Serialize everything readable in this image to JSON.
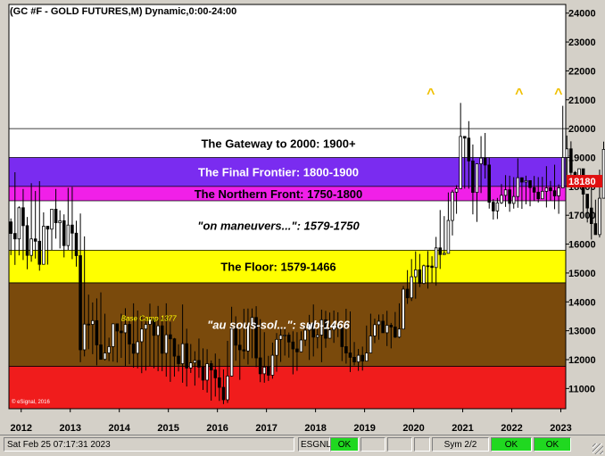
{
  "title": "(GC #F - GOLD FUTURES,M) Dynamic,0:00-24:00",
  "price_marker": "18180",
  "copyright": "© eSignal, 2016",
  "status": {
    "datetime": "Sat Feb 25 07:17:31 2023",
    "esignal_label": "ESGNL:",
    "esignal_status": "OK",
    "sym_label": "Sym 2/2",
    "ok1": "OK",
    "ok2": "OK"
  },
  "colors": {
    "gateway": "#ffffff",
    "final_frontier": "#7a2cf0",
    "northern_front": "#f020e8",
    "maneuvers": "#ffffff",
    "floor": "#ffff00",
    "sous_sol": "#7a4a0c",
    "red_zone": "#f01c1c",
    "candle_up": "#ffffff",
    "candle_down": "#000000",
    "peak_marker": "#f0c000"
  },
  "chart_data": {
    "type": "candlestick",
    "title": "(GC #F - GOLD FUTURES,M) Dynamic,0:00-24:00",
    "ylim": [
      10300,
      24300
    ],
    "yticks": [
      "24000",
      "23000",
      "22000",
      "21000",
      "20000",
      "19000",
      "18000",
      "17000",
      "16000",
      "15000",
      "14000",
      "13000",
      "12000",
      "11000"
    ],
    "xticks": [
      "2012",
      "2013",
      "2014",
      "2015",
      "2016",
      "2017",
      "2018",
      "2019",
      "2020",
      "2021",
      "2022",
      "2023"
    ],
    "xlim": [
      2011.75,
      2023.1
    ],
    "current_price": 18180,
    "zones": [
      {
        "label": "The Gateway to 2000:  1900+",
        "from": 19000,
        "to": 20000,
        "key": "gateway",
        "italic": false,
        "text_color": "#000000"
      },
      {
        "label": "The Final Frontier:  1800-1900",
        "from": 18000,
        "to": 19000,
        "key": "final_frontier",
        "italic": false,
        "text_color": "#ffffff"
      },
      {
        "label": "The Northern Front:  1750-1800",
        "from": 17500,
        "to": 18000,
        "key": "northern_front",
        "italic": false,
        "text_color": "#000000"
      },
      {
        "label": "\"on maneuvers...\":  1579-1750",
        "from": 15790,
        "to": 17500,
        "key": "maneuvers",
        "italic": true,
        "text_color": "#000000"
      },
      {
        "label": "The Floor:  1579-1466",
        "from": 14660,
        "to": 15790,
        "key": "floor",
        "italic": false,
        "text_color": "#000000"
      },
      {
        "label": "\"au sous-sol...\":  sub-1466",
        "from": 11770,
        "to": 14660,
        "key": "sous_sol",
        "italic": true,
        "text_color": "#ffffff"
      },
      {
        "label": "",
        "from": 10300,
        "to": 11770,
        "key": "red_zone",
        "italic": false,
        "text_color": "#ffffff"
      }
    ],
    "annotations": [
      {
        "text": "Base Camp 1377",
        "x": 2014.6,
        "y": 13770
      }
    ],
    "peaks": [
      {
        "text": "^",
        "x": 2020.35
      },
      {
        "text": "^",
        "x": 2022.15
      },
      {
        "text": "^",
        "x": 2022.95
      }
    ],
    "closes": [
      16370,
      16180,
      17260,
      16640,
      15610,
      16180,
      16100,
      15300,
      16620,
      16520,
      17210,
      16740,
      16810,
      15950,
      16660,
      16380,
      15600,
      12340,
      13230,
      13220,
      13350,
      12510,
      12010,
      12230,
      12450,
      13240,
      12990,
      12930,
      13220,
      12540,
      12220,
      12620,
      13060,
      13220,
      13400,
      12840,
      13170,
      12220,
      12860,
      12720,
      12120,
      11860,
      12550,
      11710,
      11890,
      11970,
      11740,
      11290,
      11860,
      11640,
      11370,
      11040,
      10610,
      11430,
      13060,
      12500,
      12340,
      12300,
      13180,
      13460,
      12060,
      11510,
      11740,
      11460,
      12150,
      12700,
      12840,
      12850,
      12610,
      12370,
      12270,
      12680,
      13020,
      13240,
      12780,
      12850,
      13380,
      12740,
      13030,
      13180,
      13090,
      12450,
      12230,
      12080,
      11920,
      12150,
      11950,
      12230,
      12820,
      13210,
      13330,
      12930,
      13190,
      13130,
      12780,
      13060,
      14440,
      14140,
      14870,
      15110,
      14640,
      15250,
      15240,
      15190,
      15870,
      15640,
      15680,
      16820,
      17800,
      17920,
      19730,
      19671,
      18880,
      17790,
      18780,
      18980,
      18740,
      17450,
      17150,
      17430,
      17690,
      17880,
      17410,
      17650,
      18300,
      18150,
      18200,
      17960,
      17800,
      17570,
      17830,
      17950,
      17850,
      17670,
      17950,
      19000,
      19300,
      18480,
      18230,
      18610,
      17730,
      17250,
      16710,
      16330,
      17590,
      19280,
      18180
    ],
    "highs": [
      16890,
      18490,
      17310,
      17910,
      16940,
      18110,
      17840,
      18180,
      17100,
      16360,
      16920,
      17910,
      17170,
      17030,
      17950,
      17980,
      16810,
      17060,
      16270,
      14250,
      13980,
      14120,
      14330,
      13590,
      12760,
      12860,
      12710,
      13590,
      13780,
      13340,
      13950,
      13700,
      13540,
      13450,
      13940,
      13410,
      13860,
      13450,
      13950,
      13310,
      12750,
      12530,
      13910,
      13070,
      12540,
      12290,
      12730,
      12390,
      12360,
      11970,
      12210,
      12030,
      11660,
      12650,
      13830,
      13500,
      13160,
      13760,
      13770,
      13770,
      13850,
      13400,
      12950,
      12130,
      12590,
      12920,
      13090,
      13090,
      12940,
      12980,
      12950,
      12980,
      13180,
      13550,
      13910,
      13090,
      13730,
      13690,
      13630,
      13700,
      13640,
      13310,
      13760,
      13670,
      12610,
      12370,
      12450,
      13180,
      13590,
      13420,
      13560,
      13570,
      13690,
      13270,
      13650,
      13950,
      14550,
      15100,
      15480,
      15750,
      15660,
      15290,
      15760,
      15580,
      16250,
      17180,
      16970,
      17790,
      17880,
      18040,
      20890,
      19660,
      20260,
      19450,
      18780,
      19740,
      19850,
      18990,
      17560,
      17600,
      18080,
      18390,
      18370,
      18320,
      18970,
      18120,
      18370,
      18190,
      18360,
      18320,
      18330,
      18700,
      18190,
      18750,
      18070,
      20790,
      19760,
      19560,
      18530,
      18170,
      18570,
      17690,
      17910,
      17540,
      18580,
      19550,
      19710
    ],
    "lows": [
      15620,
      15280,
      15610,
      15450,
      15130,
      15390,
      15500,
      15080,
      15520,
      15290,
      15800,
      16190,
      15850,
      15540,
      15800,
      15480,
      15220,
      11910,
      12110,
      12360,
      12190,
      11800,
      12150,
      11970,
      11950,
      11930,
      11900,
      12060,
      11780,
      11840,
      11720,
      11700,
      11530,
      11620,
      11770,
      11700,
      11600,
      11600,
      11410,
      11230,
      11410,
      11590,
      11200,
      11070,
      11540,
      11100,
      11370,
      10950,
      10860,
      10580,
      10720,
      10570,
      10460,
      10500,
      11410,
      11960,
      11300,
      12020,
      11830,
      12050,
      11740,
      11220,
      11200,
      11260,
      11340,
      11580,
      11920,
      12140,
      12070,
      11490,
      11610,
      12260,
      12470,
      11990,
      12110,
      12390,
      11910,
      12410,
      12900,
      12580,
      12780,
      11950,
      11860,
      11570,
      11800,
      11610,
      11620,
      11970,
      12300,
      12570,
      12690,
      12960,
      12470,
      12390,
      12750,
      12740,
      13370,
      13930,
      14030,
      14110,
      14510,
      14610,
      14460,
      14670,
      14560,
      15140,
      15640,
      16070,
      16300,
      17050,
      18740,
      17920,
      17920,
      17030,
      16770,
      17770,
      18270,
      17230,
      16850,
      16870,
      17390,
      17290,
      17120,
      17230,
      17260,
      17220,
      17380,
      17310,
      17490,
      17440,
      17670,
      17270,
      17510,
      17210,
      17050,
      17980,
      17980,
      18240,
      17950,
      18000,
      17060,
      16750,
      16160,
      16410,
      16230,
      18370,
      17930
    ]
  }
}
